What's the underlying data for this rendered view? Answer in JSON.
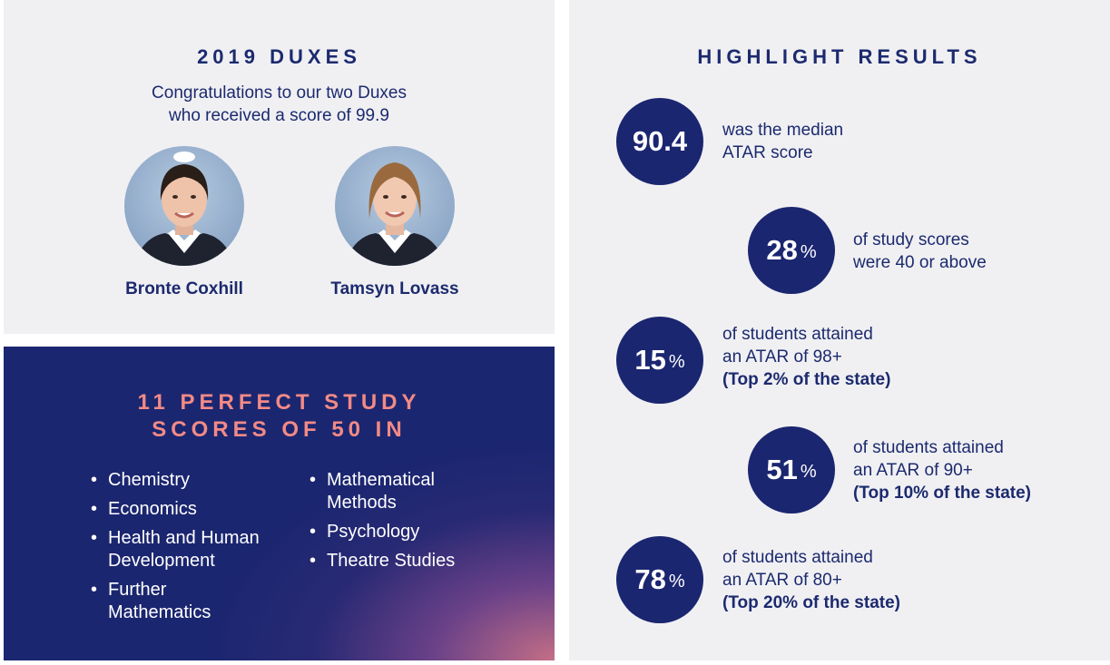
{
  "duxes": {
    "heading": "2019 DUXES",
    "subtitle_line1": "Congratulations to our two Duxes",
    "subtitle_line2": "who received a score of 99.9",
    "students": [
      {
        "name": "Bronte Coxhill"
      },
      {
        "name": "Tamsyn Lovass"
      }
    ]
  },
  "perfect": {
    "title_line1": "11 PERFECT STUDY",
    "title_line2": "SCORES OF 50 IN",
    "column1": [
      {
        "line1": "Chemistry",
        "line2": ""
      },
      {
        "line1": "Economics",
        "line2": ""
      },
      {
        "line1": "Health and Human",
        "line2": "Development"
      },
      {
        "line1": "Further",
        "line2": "Mathematics"
      }
    ],
    "column2": [
      {
        "line1": "Mathematical",
        "line2": "Methods"
      },
      {
        "line1": "Psychology",
        "line2": ""
      },
      {
        "line1": "Theatre Studies",
        "line2": ""
      }
    ]
  },
  "highlights": {
    "heading": "HIGHLIGHT RESULTS",
    "stats": [
      {
        "value": "90.4",
        "unit": "",
        "line1": "was the median",
        "line2": "ATAR score",
        "note": ""
      },
      {
        "value": "28",
        "unit": "%",
        "line1": "of study scores",
        "line2": "were 40 or above",
        "note": ""
      },
      {
        "value": "15",
        "unit": "%",
        "line1": "of students attained",
        "line2": "an ATAR of 98+",
        "note": "(Top 2% of the state)"
      },
      {
        "value": "51",
        "unit": "%",
        "line1": "of students attained",
        "line2": "an ATAR of 90+",
        "note": "(Top 10% of the state)"
      },
      {
        "value": "78",
        "unit": "%",
        "line1": "of students attained",
        "line2": "an ATAR of 80+",
        "note": "(Top 20% of the state)"
      }
    ]
  },
  "colors": {
    "navy": "#1b2670",
    "text_navy": "#1c2a6e",
    "panel_grey": "#f0f0f3",
    "coral": "#f28a86",
    "accent_pink": "#c46f86"
  }
}
